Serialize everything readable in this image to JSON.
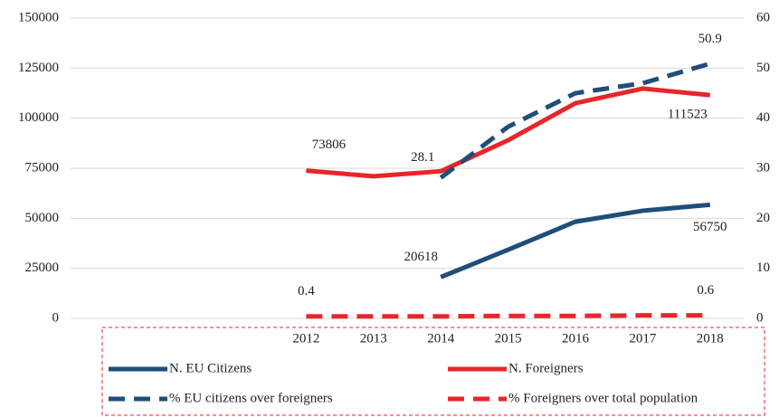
{
  "chart_data": {
    "type": "line",
    "categories": [
      null,
      null,
      null,
      "2012",
      "2013",
      "2014",
      "2015",
      "2016",
      "2017",
      "2018"
    ],
    "series": [
      {
        "name": "N. EU Citizens",
        "color": "#1f4e79",
        "dash": false,
        "values": [
          null,
          null,
          null,
          null,
          null,
          20618,
          34300,
          48300,
          53800,
          56750
        ],
        "labeled_points": [
          5,
          9
        ]
      },
      {
        "name": "N. Foreigners",
        "color": "#e8262a",
        "dash": false,
        "values": [
          null,
          null,
          null,
          73806,
          71000,
          73500,
          89000,
          107500,
          114800,
          111523
        ],
        "labeled_points": [
          3,
          9
        ]
      },
      {
        "name": "% EU citizens over foreigners",
        "color": "#1f4e79",
        "dash": true,
        "axis": "y2",
        "values": [
          null,
          null,
          null,
          null,
          null,
          28.1,
          38.3,
          45.0,
          47.0,
          50.9
        ],
        "labeled_points": [
          5,
          9
        ]
      },
      {
        "name": "% Foreigners over total population",
        "color": "#e8262a",
        "dash": true,
        "axis": "y2",
        "values": [
          null,
          null,
          null,
          0.4,
          0.4,
          0.4,
          0.5,
          0.5,
          0.6,
          0.6
        ],
        "labeled_points": [
          3,
          9
        ]
      }
    ],
    "ylim": [
      0,
      150000
    ],
    "yticks": [
      0,
      25000,
      50000,
      75000,
      100000,
      125000,
      150000
    ],
    "y2lim": [
      0,
      60
    ],
    "y2ticks": [
      0,
      10,
      20,
      30,
      40,
      50,
      60
    ],
    "grid": true,
    "legend": "bottom"
  }
}
